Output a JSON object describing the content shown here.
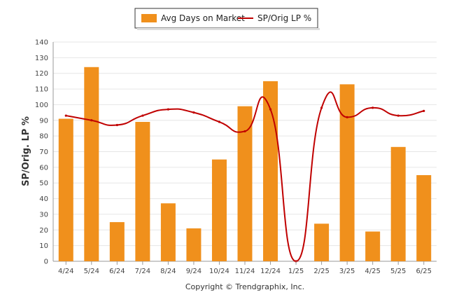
{
  "chart_data": {
    "type": "bar",
    "categories": [
      "4/24",
      "5/24",
      "6/24",
      "7/24",
      "8/24",
      "9/24",
      "10/24",
      "11/24",
      "12/24",
      "1/25",
      "2/25",
      "3/25",
      "4/25",
      "5/25",
      "6/25"
    ],
    "series": [
      {
        "name": "Avg Days on Market",
        "type": "bar",
        "color": "#F0901C",
        "values": [
          91,
          124,
          25,
          89,
          37,
          21,
          65,
          99,
          115,
          0,
          24,
          113,
          19,
          73,
          55
        ]
      },
      {
        "name": "SP/Orig LP %",
        "type": "line",
        "color": "#C00000",
        "values": [
          93,
          90,
          87,
          93,
          97,
          95,
          89,
          83,
          97,
          0,
          98,
          92,
          98,
          93,
          96
        ]
      }
    ],
    "ylabel": "SP/Orig. LP %",
    "xlabel": "",
    "ylim": [
      0,
      140
    ],
    "yticks": [
      0,
      10,
      20,
      30,
      40,
      50,
      60,
      70,
      80,
      90,
      100,
      110,
      120,
      130,
      140
    ],
    "grid": true,
    "legend_position": "top-center",
    "footer": "Copyright © Trendgraphix, Inc."
  }
}
